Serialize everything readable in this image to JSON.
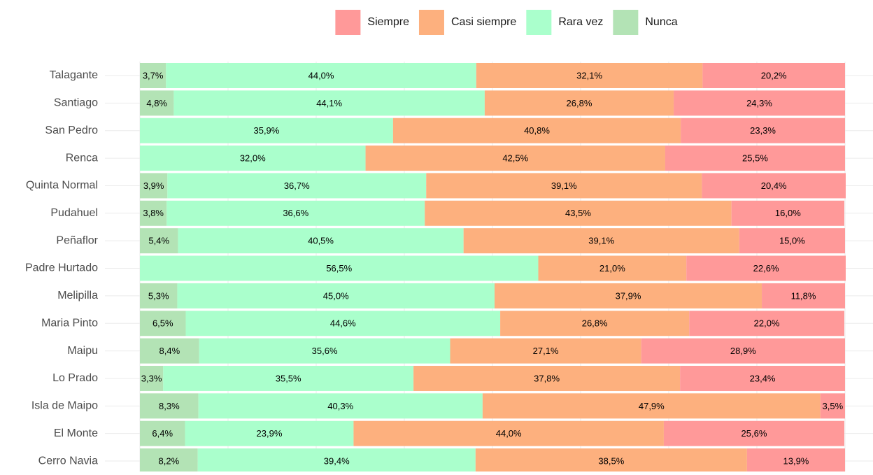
{
  "chart_data": {
    "type": "stacked_bar_horizontal",
    "categories": [
      "Talagante",
      "Santiago",
      "San Pedro",
      "Renca",
      "Quinta Normal",
      "Pudahuel",
      "Peñaflor",
      "Padre Hurtado",
      "Melipilla",
      "Maria Pinto",
      "Maipu",
      "Lo Prado",
      "Isla de Maipo",
      "El Monte",
      "Cerro Navia"
    ],
    "series": [
      {
        "name": "Nunca",
        "color": "#b3e3b5",
        "values": [
          3.7,
          4.8,
          null,
          null,
          3.9,
          3.8,
          5.4,
          null,
          5.3,
          6.5,
          8.4,
          3.3,
          8.3,
          6.4,
          8.2
        ],
        "value_labels": [
          "3,7%",
          "4,8%",
          null,
          null,
          "3,9%",
          "3,8%",
          "5,4%",
          null,
          "5,3%",
          "6,5%",
          "8,4%",
          "3,3%",
          "8,3%",
          "6,4%",
          "8,2%"
        ]
      },
      {
        "name": "Rara vez",
        "color": "#aaffcc",
        "values": [
          44.0,
          44.1,
          35.9,
          32.0,
          36.7,
          36.6,
          40.5,
          56.5,
          45.0,
          44.6,
          35.6,
          35.5,
          40.3,
          23.9,
          39.4
        ],
        "value_labels": [
          "44,0%",
          "44,1%",
          "35,9%",
          "32,0%",
          "36,7%",
          "36,6%",
          "40,5%",
          "56,5%",
          "45,0%",
          "44,6%",
          "35,6%",
          "35,5%",
          "40,3%",
          "23,9%",
          "39,4%"
        ]
      },
      {
        "name": "Casi siempre",
        "color": "#fdb07e",
        "values": [
          32.1,
          26.8,
          40.8,
          42.5,
          39.1,
          43.5,
          39.1,
          21.0,
          37.9,
          26.8,
          27.1,
          37.8,
          47.9,
          44.0,
          38.5
        ],
        "value_labels": [
          "32,1%",
          "26,8%",
          "40,8%",
          "42,5%",
          "39,1%",
          "43,5%",
          "39,1%",
          "21,0%",
          "37,9%",
          "26,8%",
          "27,1%",
          "37,8%",
          "47,9%",
          "44,0%",
          "38,5%"
        ]
      },
      {
        "name": "Siempre",
        "color": "#ff9999",
        "values": [
          20.2,
          24.3,
          23.3,
          25.5,
          20.4,
          16.0,
          15.0,
          22.6,
          11.8,
          22.0,
          28.9,
          23.4,
          3.5,
          25.6,
          13.9
        ],
        "value_labels": [
          "20,2%",
          "24,3%",
          "23,3%",
          "25,5%",
          "20,4%",
          "16,0%",
          "15,0%",
          "22,6%",
          "11,8%",
          "22,0%",
          "28,9%",
          "23,4%",
          "3,5%",
          "25,6%",
          "13,9%"
        ]
      }
    ],
    "xlim": [
      0,
      100
    ],
    "legend": "top"
  }
}
